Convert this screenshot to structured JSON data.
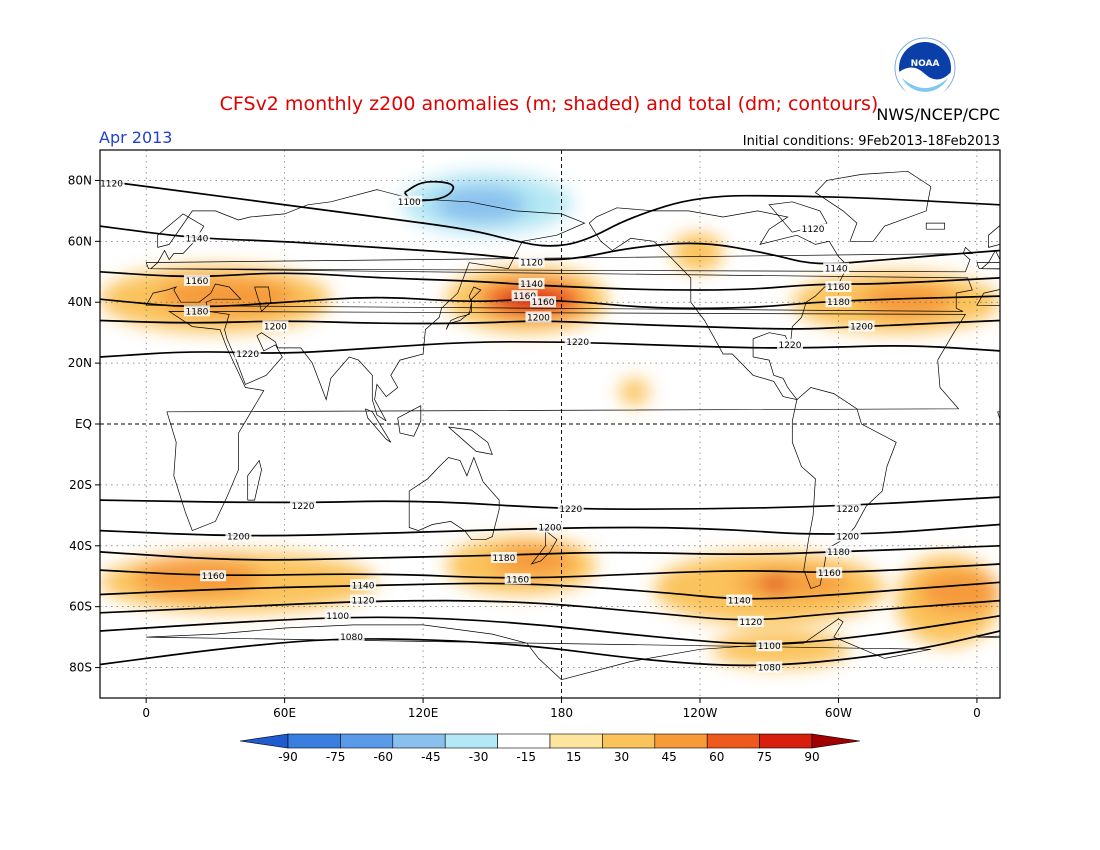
{
  "header": {
    "title": "CFSv2 monthly z200 anomalies (m; shaded) and total (dm; contours)",
    "agency": "NWS/NCEP/CPC",
    "month": "Apr 2013",
    "initial_conditions": "Initial conditions: 9Feb2013-18Feb2013",
    "logo_text": "NOAA"
  },
  "map": {
    "lat_ticks": [
      {
        "lat": 80,
        "label": "80N"
      },
      {
        "lat": 60,
        "label": "60N"
      },
      {
        "lat": 40,
        "label": "40N"
      },
      {
        "lat": 20,
        "label": "20N"
      },
      {
        "lat": 0,
        "label": "EQ"
      },
      {
        "lat": -20,
        "label": "20S"
      },
      {
        "lat": -40,
        "label": "40S"
      },
      {
        "lat": -60,
        "label": "60S"
      },
      {
        "lat": -80,
        "label": "80S"
      }
    ],
    "lon_ticks": [
      {
        "lon": 0,
        "label": "0"
      },
      {
        "lon": 60,
        "label": "60E"
      },
      {
        "lon": 120,
        "label": "120E"
      },
      {
        "lon": 180,
        "label": "180"
      },
      {
        "lon": 240,
        "label": "120W"
      },
      {
        "lon": 300,
        "label": "60W"
      },
      {
        "lon": 360,
        "label": "0"
      }
    ],
    "lon_range": [
      -20,
      370
    ],
    "lat_range": [
      -90,
      90
    ]
  },
  "colorbar": {
    "levels": [
      "-90",
      "-75",
      "-60",
      "-45",
      "-30",
      "-15",
      "15",
      "30",
      "45",
      "60",
      "75",
      "90"
    ],
    "colors": [
      "#1e5ccf",
      "#3a7ee0",
      "#5a9ae8",
      "#89c0ee",
      "#b4e8f4",
      "#ffffff",
      "#fde59e",
      "#fbc35c",
      "#f69a3a",
      "#ee5a1e",
      "#d81f0e",
      "#a00000"
    ]
  },
  "chart_data": {
    "type": "heatmap",
    "title": "CFSv2 monthly z200 anomalies (m; shaded) and total (dm; contours)",
    "contour_labels": [
      {
        "value": 1120,
        "lon": -15,
        "lat": 79
      },
      {
        "value": 1100,
        "lon": 114,
        "lat": 73
      },
      {
        "value": 1140,
        "lon": 22,
        "lat": 61
      },
      {
        "value": 1120,
        "lon": 167,
        "lat": 53
      },
      {
        "value": 1140,
        "lon": 167,
        "lat": 46
      },
      {
        "value": 1160,
        "lon": 164,
        "lat": 42
      },
      {
        "value": 1160,
        "lon": 172,
        "lat": 40
      },
      {
        "value": 1200,
        "lon": 170,
        "lat": 35
      },
      {
        "value": 1160,
        "lon": 22,
        "lat": 47
      },
      {
        "value": 1180,
        "lon": 22,
        "lat": 37
      },
      {
        "value": 1200,
        "lon": 56,
        "lat": 32
      },
      {
        "value": 1220,
        "lon": 187,
        "lat": 27
      },
      {
        "value": 1220,
        "lon": 44,
        "lat": 23
      },
      {
        "value": 1120,
        "lon": 289,
        "lat": 64
      },
      {
        "value": 1140,
        "lon": 299,
        "lat": 51
      },
      {
        "value": 1160,
        "lon": 300,
        "lat": 45
      },
      {
        "value": 1180,
        "lon": 300,
        "lat": 40
      },
      {
        "value": 1200,
        "lon": 310,
        "lat": 32
      },
      {
        "value": 1220,
        "lon": 279,
        "lat": 26
      },
      {
        "value": 1220,
        "lon": 68,
        "lat": -27
      },
      {
        "value": 1220,
        "lon": 184,
        "lat": -28
      },
      {
        "value": 1220,
        "lon": 304,
        "lat": -28
      },
      {
        "value": 1200,
        "lon": 40,
        "lat": -37
      },
      {
        "value": 1200,
        "lon": 175,
        "lat": -34
      },
      {
        "value": 1200,
        "lon": 304,
        "lat": -37
      },
      {
        "value": 1180,
        "lon": 155,
        "lat": -44
      },
      {
        "value": 1180,
        "lon": 300,
        "lat": -42
      },
      {
        "value": 1160,
        "lon": 29,
        "lat": -50
      },
      {
        "value": 1160,
        "lon": 161,
        "lat": -51
      },
      {
        "value": 1160,
        "lon": 296,
        "lat": -49
      },
      {
        "value": 1140,
        "lon": 94,
        "lat": -53
      },
      {
        "value": 1140,
        "lon": 257,
        "lat": -58
      },
      {
        "value": 1120,
        "lon": 94,
        "lat": -58
      },
      {
        "value": 1120,
        "lon": 262,
        "lat": -65
      },
      {
        "value": 1100,
        "lon": 83,
        "lat": -63
      },
      {
        "value": 1100,
        "lon": 270,
        "lat": -73
      },
      {
        "value": 1080,
        "lon": 89,
        "lat": -70
      },
      {
        "value": 1080,
        "lon": 270,
        "lat": -80
      }
    ],
    "contours": [
      {
        "value": 1120,
        "points": [
          [
            -20,
            80
          ],
          [
            20,
            76
          ],
          [
            60,
            72
          ],
          [
            100,
            68
          ],
          [
            140,
            64
          ],
          [
            160,
            60
          ],
          [
            175,
            58
          ],
          [
            190,
            60
          ],
          [
            210,
            68
          ],
          [
            240,
            75
          ],
          [
            280,
            75
          ],
          [
            320,
            74
          ],
          [
            370,
            72
          ]
        ]
      },
      {
        "value": 1140,
        "points": [
          [
            -20,
            65
          ],
          [
            20,
            61
          ],
          [
            60,
            60
          ],
          [
            100,
            58
          ],
          [
            140,
            56
          ],
          [
            165,
            54
          ],
          [
            185,
            54
          ],
          [
            210,
            58
          ],
          [
            240,
            60
          ],
          [
            270,
            56
          ],
          [
            290,
            52
          ],
          [
            320,
            54
          ],
          [
            370,
            57
          ]
        ]
      },
      {
        "value": 1160,
        "points": [
          [
            -20,
            50
          ],
          [
            20,
            48
          ],
          [
            60,
            50
          ],
          [
            100,
            48
          ],
          [
            140,
            47
          ],
          [
            160,
            46
          ],
          [
            185,
            45
          ],
          [
            220,
            44
          ],
          [
            260,
            44
          ],
          [
            290,
            46
          ],
          [
            320,
            46
          ],
          [
            370,
            48
          ]
        ]
      },
      {
        "value": 1180,
        "points": [
          [
            -20,
            41
          ],
          [
            20,
            38
          ],
          [
            60,
            40
          ],
          [
            100,
            42
          ],
          [
            140,
            40
          ],
          [
            165,
            41
          ],
          [
            190,
            40
          ],
          [
            220,
            38
          ],
          [
            260,
            38
          ],
          [
            290,
            40
          ],
          [
            320,
            41
          ],
          [
            370,
            42
          ]
        ]
      },
      {
        "value": 1200,
        "points": [
          [
            -20,
            34
          ],
          [
            20,
            33
          ],
          [
            60,
            34
          ],
          [
            100,
            33
          ],
          [
            140,
            33
          ],
          [
            170,
            34
          ],
          [
            200,
            33
          ],
          [
            240,
            32
          ],
          [
            280,
            31
          ],
          [
            310,
            32
          ],
          [
            370,
            34
          ]
        ]
      },
      {
        "value": 1220,
        "points": [
          [
            -20,
            22
          ],
          [
            20,
            24
          ],
          [
            60,
            23
          ],
          [
            100,
            25
          ],
          [
            140,
            27
          ],
          [
            180,
            27
          ],
          [
            220,
            26
          ],
          [
            260,
            25
          ],
          [
            290,
            25
          ],
          [
            330,
            26
          ],
          [
            370,
            24
          ]
        ]
      },
      {
        "value": 1100,
        "points": [
          [
            112,
            76
          ],
          [
            120,
            80
          ],
          [
            135,
            79
          ],
          [
            130,
            74
          ],
          [
            115,
            73
          ],
          [
            112,
            76
          ]
        ]
      },
      {
        "value": 1220,
        "points": [
          [
            -20,
            -25
          ],
          [
            60,
            -26
          ],
          [
            120,
            -25
          ],
          [
            180,
            -28
          ],
          [
            240,
            -28
          ],
          [
            300,
            -27
          ],
          [
            370,
            -24
          ]
        ]
      },
      {
        "value": 1200,
        "points": [
          [
            -20,
            -35
          ],
          [
            40,
            -37
          ],
          [
            100,
            -36
          ],
          [
            180,
            -34
          ],
          [
            240,
            -34
          ],
          [
            300,
            -37
          ],
          [
            370,
            -33
          ]
        ]
      },
      {
        "value": 1180,
        "points": [
          [
            -20,
            -42
          ],
          [
            40,
            -45
          ],
          [
            100,
            -44
          ],
          [
            160,
            -43
          ],
          [
            200,
            -42
          ],
          [
            260,
            -43
          ],
          [
            300,
            -42
          ],
          [
            370,
            -40
          ]
        ]
      },
      {
        "value": 1160,
        "points": [
          [
            -20,
            -48
          ],
          [
            30,
            -50
          ],
          [
            100,
            -49
          ],
          [
            160,
            -51
          ],
          [
            220,
            -49
          ],
          [
            260,
            -48
          ],
          [
            300,
            -49
          ],
          [
            370,
            -46
          ]
        ]
      },
      {
        "value": 1140,
        "points": [
          [
            -20,
            -56
          ],
          [
            40,
            -54
          ],
          [
            100,
            -53
          ],
          [
            160,
            -52
          ],
          [
            220,
            -55
          ],
          [
            260,
            -58
          ],
          [
            300,
            -56
          ],
          [
            370,
            -52
          ]
        ]
      },
      {
        "value": 1120,
        "points": [
          [
            -20,
            -62
          ],
          [
            40,
            -60
          ],
          [
            100,
            -58
          ],
          [
            160,
            -58
          ],
          [
            220,
            -62
          ],
          [
            260,
            -65
          ],
          [
            300,
            -62
          ],
          [
            370,
            -58
          ]
        ]
      },
      {
        "value": 1100,
        "points": [
          [
            -20,
            -68
          ],
          [
            40,
            -65
          ],
          [
            100,
            -63
          ],
          [
            160,
            -65
          ],
          [
            220,
            -70
          ],
          [
            270,
            -73
          ],
          [
            320,
            -69
          ],
          [
            370,
            -63
          ]
        ]
      },
      {
        "value": 1080,
        "points": [
          [
            -20,
            -79
          ],
          [
            40,
            -73
          ],
          [
            90,
            -70
          ],
          [
            160,
            -72
          ],
          [
            220,
            -78
          ],
          [
            270,
            -80
          ],
          [
            330,
            -75
          ],
          [
            370,
            -68
          ]
        ]
      }
    ],
    "anomaly_regions": [
      {
        "value": -20,
        "lon": [
          -15,
          370
        ],
        "lat": [
          68,
          88
        ]
      },
      {
        "value": -20,
        "lon": [
          100,
          205
        ],
        "lat": [
          57,
          88
        ]
      },
      {
        "value": -40,
        "lon": [
          110,
          185
        ],
        "lat": [
          62,
          83
        ]
      },
      {
        "value": -60,
        "lon": [
          125,
          165
        ],
        "lat": [
          66,
          78
        ]
      },
      {
        "value": 20,
        "lon": [
          -20,
          80
        ],
        "lat": [
          30,
          52
        ]
      },
      {
        "value": 35,
        "lon": [
          5,
          65
        ],
        "lat": [
          36,
          48
        ]
      },
      {
        "value": 20,
        "lon": [
          130,
          200
        ],
        "lat": [
          30,
          52
        ]
      },
      {
        "value": 45,
        "lon": [
          145,
          190
        ],
        "lat": [
          35,
          47
        ]
      },
      {
        "value": 60,
        "lon": [
          155,
          180
        ],
        "lat": [
          37,
          44
        ]
      },
      {
        "value": 20,
        "lon": [
          280,
          370
        ],
        "lat": [
          30,
          50
        ]
      },
      {
        "value": 35,
        "lon": [
          310,
          350
        ],
        "lat": [
          35,
          46
        ]
      },
      {
        "value": 20,
        "lon": [
          228,
          250
        ],
        "lat": [
          50,
          63
        ]
      },
      {
        "value": 20,
        "lon": [
          205,
          218
        ],
        "lat": [
          6,
          15
        ]
      },
      {
        "value": 20,
        "lon": [
          -20,
          100
        ],
        "lat": [
          -62,
          -42
        ]
      },
      {
        "value": 35,
        "lon": [
          -5,
          50
        ],
        "lat": [
          -57,
          -44
        ]
      },
      {
        "value": 20,
        "lon": [
          130,
          195
        ],
        "lat": [
          -56,
          -37
        ]
      },
      {
        "value": 35,
        "lon": [
          150,
          185
        ],
        "lat": [
          -50,
          -40
        ]
      },
      {
        "value": 20,
        "lon": [
          220,
          320
        ],
        "lat": [
          -66,
          -42
        ]
      },
      {
        "value": 35,
        "lon": [
          255,
          305
        ],
        "lat": [
          -57,
          -48
        ]
      },
      {
        "value": 60,
        "lon": [
          267,
          278
        ],
        "lat": [
          -55,
          -50
        ]
      },
      {
        "value": 20,
        "lon": [
          245,
          305
        ],
        "lat": [
          -80,
          -68
        ]
      },
      {
        "value": 20,
        "lon": [
          325,
          370
        ],
        "lat": [
          -73,
          -43
        ]
      },
      {
        "value": 35,
        "lon": [
          335,
          370
        ],
        "lat": [
          -62,
          -48
        ]
      }
    ]
  }
}
